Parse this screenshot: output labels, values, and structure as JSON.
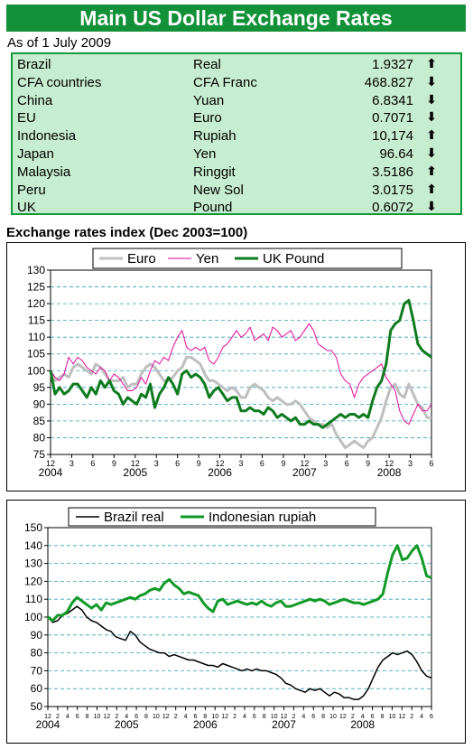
{
  "header": {
    "title": "Main US Dollar Exchange Rates"
  },
  "as_of": "As of 1 July 2009",
  "rates": [
    {
      "country": "Brazil",
      "currency": "Real",
      "value": "1.9327",
      "direction": "up"
    },
    {
      "country": "CFA countries",
      "currency": "CFA Franc",
      "value": "468.827",
      "direction": "down"
    },
    {
      "country": "China",
      "currency": "Yuan",
      "value": "6.8341",
      "direction": "down"
    },
    {
      "country": "EU",
      "currency": "Euro",
      "value": "0.7071",
      "direction": "down"
    },
    {
      "country": "Indonesia",
      "currency": "Rupiah",
      "value": "10,174",
      "direction": "up"
    },
    {
      "country": "Japan",
      "currency": "Yen",
      "value": "96.64",
      "direction": "down"
    },
    {
      "country": "Malaysia",
      "currency": "Ringgit",
      "value": "3.5186",
      "direction": "up"
    },
    {
      "country": "Peru",
      "currency": "New Sol",
      "value": "3.0175",
      "direction": "up"
    },
    {
      "country": "UK",
      "currency": "Pound",
      "value": "0.6072",
      "direction": "down"
    }
  ],
  "arrow_glyphs": {
    "up": "⬆",
    "down": "⬇"
  },
  "section_heading": "Exchange rates index (Dec 2003=100)",
  "chart_data": [
    {
      "type": "line",
      "ylim": [
        75,
        130
      ],
      "yticks": [
        75,
        80,
        85,
        90,
        95,
        100,
        105,
        110,
        115,
        120,
        125,
        130
      ],
      "grid": true,
      "legend_position": "top",
      "x_month_labels": [
        "12",
        "3",
        "6",
        "9",
        "12",
        "3",
        "6",
        "9",
        "12",
        "3",
        "6",
        "9",
        "12",
        "3",
        "6",
        "9",
        "12",
        "3",
        "6"
      ],
      "x_year_labels": [
        "2004",
        "2005",
        "2006",
        "2007",
        "2008"
      ],
      "series": [
        {
          "name": "Euro",
          "color": "#bfbfbf",
          "width": 3,
          "values": [
            100,
            97,
            98,
            99,
            98,
            101,
            102,
            101,
            100,
            99,
            102,
            101,
            99,
            97,
            97,
            97,
            98,
            95,
            96,
            96,
            99,
            101,
            102,
            101,
            99,
            97,
            97,
            98,
            100,
            101,
            104,
            104,
            103,
            102,
            99,
            97,
            97,
            96,
            95,
            94,
            95,
            94,
            92,
            92,
            95,
            96,
            95,
            94,
            92,
            91,
            92,
            91,
            90,
            90,
            91,
            90,
            88,
            86,
            85,
            84,
            84,
            83,
            84,
            81,
            79,
            77,
            78,
            79,
            78,
            77,
            79,
            80,
            83,
            86,
            91,
            95,
            96,
            93,
            92,
            96,
            93,
            90,
            89,
            86,
            86
          ]
        },
        {
          "name": "Yen",
          "color": "#e0099a",
          "width": 1,
          "values": [
            100,
            98,
            97,
            99,
            104,
            102,
            104,
            103,
            101,
            100,
            99,
            101,
            100,
            97,
            99,
            98,
            96,
            94,
            94,
            95,
            98,
            96,
            100,
            103,
            102,
            104,
            103,
            107,
            110,
            112,
            107,
            106,
            107,
            106,
            107,
            103,
            102,
            104,
            107,
            108,
            110,
            112,
            110,
            111,
            113,
            109,
            110,
            111,
            109,
            113,
            112,
            110,
            111,
            112,
            109,
            110,
            112,
            114,
            112,
            108,
            107,
            106,
            106,
            104,
            99,
            97,
            96,
            92,
            96,
            98,
            99,
            100,
            101,
            102,
            98,
            96,
            94,
            88,
            85,
            84,
            87,
            90,
            88,
            88,
            90
          ]
        },
        {
          "name": "UK Pound",
          "color": "#0e7b1f",
          "width": 3,
          "values": [
            100,
            93,
            95,
            93,
            94,
            96,
            96,
            94,
            92,
            95,
            93,
            97,
            95,
            97,
            94,
            93,
            90,
            92,
            91,
            90,
            93,
            92,
            96,
            89,
            93,
            95,
            98,
            96,
            93,
            99,
            100,
            98,
            99,
            98,
            96,
            92,
            94,
            95,
            93,
            91,
            92,
            92,
            88,
            88,
            89,
            88,
            88,
            87,
            89,
            88,
            86,
            87,
            86,
            85,
            86,
            84,
            84,
            85,
            84,
            84,
            83,
            84,
            85,
            86,
            87,
            86,
            87,
            87,
            86,
            87,
            86,
            91,
            95,
            97,
            102,
            112,
            114,
            115,
            120,
            121,
            115,
            108,
            106,
            105,
            104
          ]
        }
      ]
    },
    {
      "type": "line",
      "ylim": [
        50,
        150
      ],
      "yticks": [
        50,
        60,
        70,
        80,
        90,
        100,
        110,
        120,
        130,
        140,
        150
      ],
      "grid": true,
      "legend_position": "top",
      "x_month_labels": [
        "12",
        "2",
        "4",
        "6",
        "8",
        "10",
        "12",
        "2",
        "4",
        "6",
        "8",
        "10",
        "12",
        "2",
        "4",
        "6",
        "8",
        "10",
        "12",
        "2",
        "4",
        "6",
        "8",
        "10",
        "12",
        "2",
        "4",
        "6",
        "8",
        "10",
        "12",
        "2",
        "4",
        "6",
        "8",
        "10",
        "12",
        "2",
        "4",
        "6"
      ],
      "x_year_labels": [
        "2004",
        "2005",
        "2006",
        "2007",
        "2008"
      ],
      "series": [
        {
          "name": "Brazil real",
          "color": "#000000",
          "width": 1.5,
          "values": [
            100,
            97,
            98,
            101,
            102,
            104,
            106,
            104,
            100,
            98,
            97,
            95,
            93,
            92,
            89,
            88,
            87,
            92,
            90,
            86,
            84,
            82,
            81,
            80,
            80,
            78,
            79,
            78,
            77,
            76,
            76,
            75,
            74,
            73,
            73,
            72,
            74,
            73,
            72,
            71,
            70,
            71,
            70,
            71,
            70,
            70,
            69,
            68,
            66,
            63,
            62,
            60,
            59,
            58,
            60,
            59,
            60,
            58,
            56,
            58,
            57,
            55,
            55,
            54,
            54,
            56,
            60,
            66,
            72,
            76,
            78,
            80,
            79,
            80,
            81,
            79,
            75,
            70,
            67,
            66
          ]
        },
        {
          "name": "Indonesian rupiah",
          "color": "#129a28",
          "width": 3,
          "values": [
            100,
            98,
            101,
            101,
            103,
            108,
            111,
            109,
            107,
            105,
            107,
            104,
            108,
            107,
            108,
            109,
            110,
            111,
            110,
            112,
            113,
            115,
            116,
            115,
            119,
            121,
            118,
            116,
            113,
            114,
            113,
            112,
            108,
            105,
            103,
            109,
            110,
            107,
            108,
            109,
            108,
            107,
            108,
            107,
            109,
            107,
            106,
            108,
            109,
            106,
            106,
            107,
            108,
            109,
            110,
            109,
            110,
            109,
            107,
            108,
            109,
            110,
            109,
            108,
            108,
            107,
            108,
            109,
            110,
            113,
            125,
            135,
            140,
            132,
            133,
            137,
            140,
            133,
            123,
            122
          ]
        }
      ]
    }
  ]
}
